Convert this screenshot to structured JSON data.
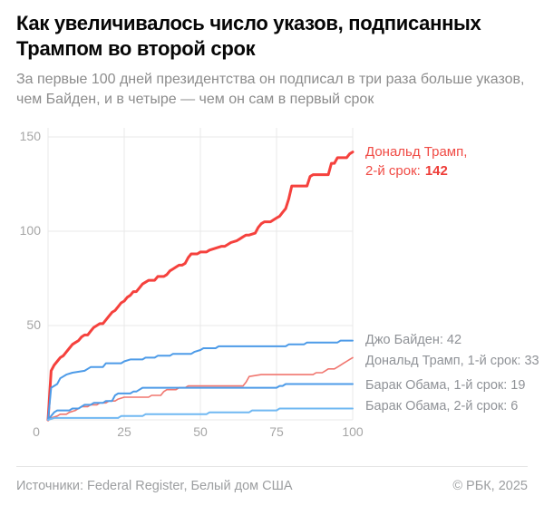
{
  "header": {
    "title": "Как увеличивалось число указов, подписанных Трампом во второй срок",
    "subtitle": "За первые 100 дней президентства он подписал в три раза больше указов, чем Байден, и в четыре — чем он сам в первый срок"
  },
  "chart_data": {
    "type": "line",
    "title": "Как увеличивалось число указов, подписанных Трампом во второй срок",
    "xlim": [
      0,
      100
    ],
    "ylim": [
      0,
      150
    ],
    "x_ticks": [
      0,
      25,
      50,
      75,
      100
    ],
    "y_ticks": [
      50,
      100,
      150
    ],
    "grid": true,
    "legend_position": "right-of-line-ends",
    "series": [
      {
        "name": "Дональд Трамп, 2-й срок",
        "final": 142,
        "color": "#f5413d",
        "width": 3,
        "points": [
          [
            0,
            0
          ],
          [
            1,
            26
          ],
          [
            2,
            29
          ],
          [
            3,
            31
          ],
          [
            4,
            33
          ],
          [
            5,
            34
          ],
          [
            6,
            36
          ],
          [
            7,
            38
          ],
          [
            8,
            40
          ],
          [
            9,
            41
          ],
          [
            10,
            42
          ],
          [
            11,
            44
          ],
          [
            12,
            45
          ],
          [
            13,
            45
          ],
          [
            14,
            47
          ],
          [
            15,
            49
          ],
          [
            16,
            50
          ],
          [
            17,
            51
          ],
          [
            18,
            51
          ],
          [
            19,
            53
          ],
          [
            20,
            55
          ],
          [
            21,
            57
          ],
          [
            22,
            58
          ],
          [
            23,
            60
          ],
          [
            24,
            62
          ],
          [
            25,
            63
          ],
          [
            26,
            65
          ],
          [
            27,
            66
          ],
          [
            28,
            68
          ],
          [
            29,
            68
          ],
          [
            30,
            70
          ],
          [
            31,
            72
          ],
          [
            32,
            73
          ],
          [
            33,
            74
          ],
          [
            35,
            74
          ],
          [
            36,
            76
          ],
          [
            38,
            76
          ],
          [
            39,
            77
          ],
          [
            40,
            79
          ],
          [
            41,
            80
          ],
          [
            42,
            81
          ],
          [
            43,
            82
          ],
          [
            44,
            82
          ],
          [
            45,
            83
          ],
          [
            46,
            86
          ],
          [
            47,
            88
          ],
          [
            49,
            88
          ],
          [
            50,
            89
          ],
          [
            52,
            89
          ],
          [
            53,
            90
          ],
          [
            55,
            91
          ],
          [
            57,
            92
          ],
          [
            58,
            92
          ],
          [
            59,
            93
          ],
          [
            60,
            94
          ],
          [
            62,
            95
          ],
          [
            63,
            96
          ],
          [
            64,
            97
          ],
          [
            65,
            98
          ],
          [
            66,
            98
          ],
          [
            68,
            99
          ],
          [
            69,
            102
          ],
          [
            70,
            104
          ],
          [
            71,
            105
          ],
          [
            73,
            105
          ],
          [
            74,
            106
          ],
          [
            75,
            107
          ],
          [
            76,
            108
          ],
          [
            77,
            110
          ],
          [
            78,
            112
          ],
          [
            79,
            117
          ],
          [
            80,
            124
          ],
          [
            85,
            124
          ],
          [
            86,
            129
          ],
          [
            87,
            130
          ],
          [
            92,
            130
          ],
          [
            93,
            136
          ],
          [
            94,
            136
          ],
          [
            95,
            139
          ],
          [
            98,
            139
          ],
          [
            99,
            141
          ],
          [
            100,
            142
          ]
        ]
      },
      {
        "name": "Джо Байден",
        "final": 42,
        "color": "#4d9be8",
        "width": 2,
        "points": [
          [
            0,
            0
          ],
          [
            1,
            17
          ],
          [
            3,
            19
          ],
          [
            4,
            22
          ],
          [
            6,
            24
          ],
          [
            8,
            25
          ],
          [
            12,
            26
          ],
          [
            13,
            27
          ],
          [
            14,
            28
          ],
          [
            18,
            28
          ],
          [
            19,
            30
          ],
          [
            24,
            30
          ],
          [
            25,
            31
          ],
          [
            27,
            32
          ],
          [
            31,
            32
          ],
          [
            32,
            33
          ],
          [
            35,
            33
          ],
          [
            36,
            34
          ],
          [
            40,
            34
          ],
          [
            41,
            35
          ],
          [
            47,
            35
          ],
          [
            48,
            36
          ],
          [
            50,
            37
          ],
          [
            51,
            38
          ],
          [
            55,
            38
          ],
          [
            56,
            39
          ],
          [
            78,
            39
          ],
          [
            79,
            40
          ],
          [
            84,
            40
          ],
          [
            85,
            41
          ],
          [
            95,
            41
          ],
          [
            96,
            42
          ],
          [
            100,
            42
          ]
        ]
      },
      {
        "name": "Дональд Трамп, 1-й срок",
        "final": 33,
        "color": "#f0766f",
        "width": 1.6,
        "points": [
          [
            0,
            0
          ],
          [
            1,
            1
          ],
          [
            3,
            2
          ],
          [
            4,
            3
          ],
          [
            6,
            3
          ],
          [
            7,
            4
          ],
          [
            9,
            5
          ],
          [
            10,
            6
          ],
          [
            11,
            7
          ],
          [
            13,
            7
          ],
          [
            14,
            8
          ],
          [
            16,
            8
          ],
          [
            17,
            9
          ],
          [
            19,
            9
          ],
          [
            20,
            10
          ],
          [
            22,
            10
          ],
          [
            23,
            11
          ],
          [
            25,
            12
          ],
          [
            33,
            12
          ],
          [
            34,
            13
          ],
          [
            37,
            13
          ],
          [
            38,
            15
          ],
          [
            39,
            16
          ],
          [
            42,
            16
          ],
          [
            43,
            17
          ],
          [
            45,
            17
          ],
          [
            46,
            18
          ],
          [
            64,
            18
          ],
          [
            65,
            20
          ],
          [
            66,
            23
          ],
          [
            70,
            24
          ],
          [
            87,
            24
          ],
          [
            88,
            25
          ],
          [
            90,
            25
          ],
          [
            91,
            26
          ],
          [
            92,
            27
          ],
          [
            94,
            27
          ],
          [
            95,
            28
          ],
          [
            96,
            29
          ],
          [
            97,
            30
          ],
          [
            98,
            31
          ],
          [
            99,
            32
          ],
          [
            100,
            33
          ]
        ]
      },
      {
        "name": "Барак Обама, 1-й срок",
        "final": 19,
        "color": "#4d9be8",
        "width": 2,
        "points": [
          [
            0,
            0
          ],
          [
            1,
            2
          ],
          [
            2,
            4
          ],
          [
            3,
            5
          ],
          [
            7,
            5
          ],
          [
            8,
            6
          ],
          [
            10,
            6
          ],
          [
            11,
            7
          ],
          [
            12,
            8
          ],
          [
            14,
            8
          ],
          [
            15,
            9
          ],
          [
            18,
            9
          ],
          [
            19,
            10
          ],
          [
            21,
            10
          ],
          [
            22,
            13
          ],
          [
            23,
            14
          ],
          [
            27,
            14
          ],
          [
            28,
            15
          ],
          [
            29,
            15
          ],
          [
            30,
            16
          ],
          [
            31,
            17
          ],
          [
            75,
            17
          ],
          [
            76,
            18
          ],
          [
            77,
            18
          ],
          [
            78,
            19
          ],
          [
            100,
            19
          ]
        ]
      },
      {
        "name": "Барак Обама, 2-й срок",
        "final": 6,
        "color": "#70b8f2",
        "width": 2,
        "points": [
          [
            0,
            0
          ],
          [
            2,
            1
          ],
          [
            23,
            1
          ],
          [
            24,
            2
          ],
          [
            31,
            2
          ],
          [
            32,
            3
          ],
          [
            52,
            3
          ],
          [
            53,
            4
          ],
          [
            66,
            4
          ],
          [
            67,
            5
          ],
          [
            75,
            5
          ],
          [
            76,
            6
          ],
          [
            100,
            6
          ]
        ]
      }
    ],
    "annotations": {
      "trump2_line1": "Дональд Трамп,",
      "trump2_line2": "2-й срок:",
      "trump2_value": "142",
      "labels": [
        "Джо Байден: 42",
        "Дональд Трамп, 1-й срок: 33",
        "Барак Обама, 1-й срок: 19",
        "Барак Обама, 2-й срок: 6"
      ]
    }
  },
  "footer": {
    "source": "Источники: Federal Register, Белый дом США",
    "copyright": "© РБК, 2025"
  }
}
